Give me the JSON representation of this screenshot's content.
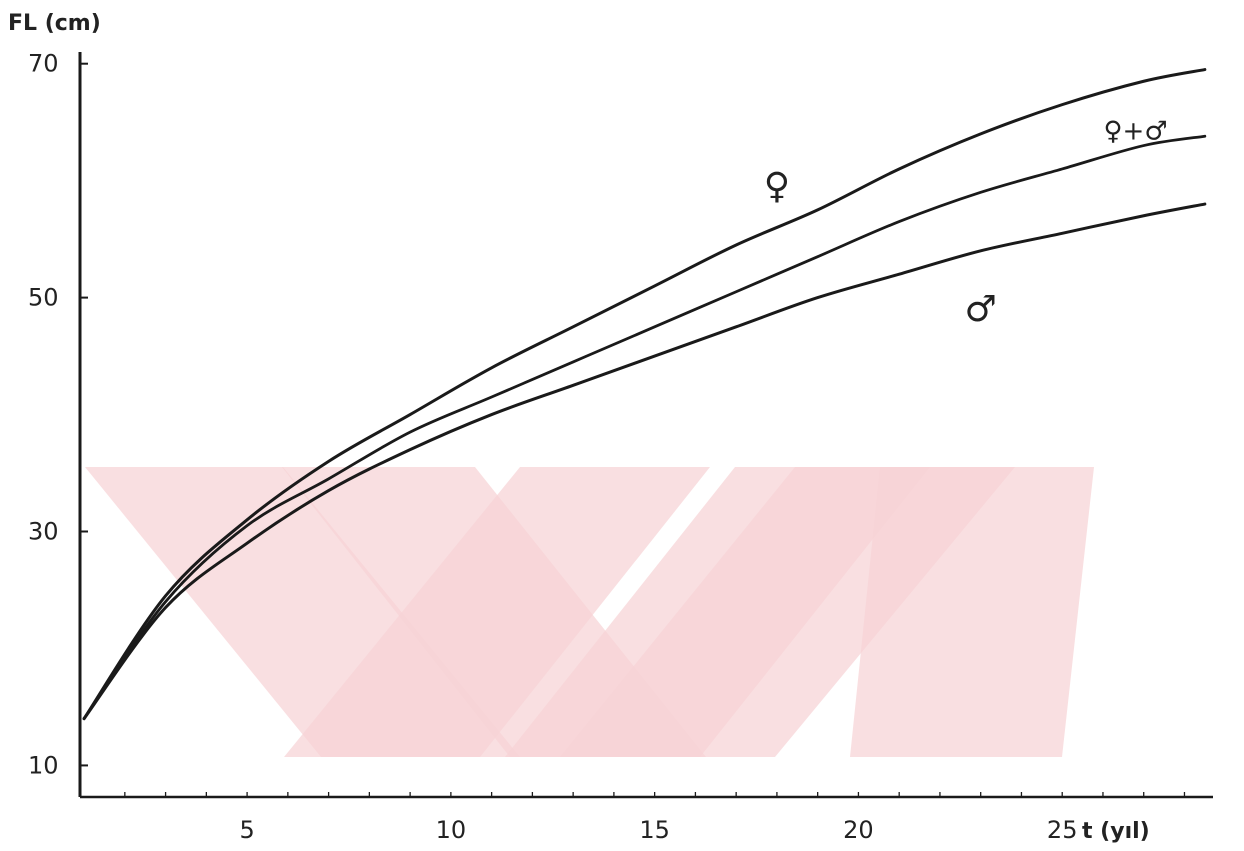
{
  "chart_data": {
    "type": "line",
    "ylabel": "FL (cm)",
    "xlabel": "t (yıl)",
    "xlim": [
      0.9,
      28.7
    ],
    "ylim": [
      7.3,
      71
    ],
    "xticks": [
      5,
      10,
      15,
      20,
      25
    ],
    "yticks": [
      10,
      30,
      50,
      70
    ],
    "x_minor_ticks": [
      2,
      3,
      4,
      5,
      6,
      7,
      8,
      9,
      10,
      11,
      12,
      13,
      14,
      15,
      16,
      17,
      18,
      19,
      20,
      21,
      22,
      23,
      24,
      25,
      26,
      27,
      28
    ],
    "grid": false,
    "colors": {
      "lines": "#1a1a1a",
      "axes": "#1a1a1a",
      "watermark": "#f7d3d6"
    },
    "series": [
      {
        "name": "♀",
        "label_pos": [
          18,
          58.5
        ],
        "points": [
          [
            1,
            14
          ],
          [
            3,
            24.5
          ],
          [
            5,
            31
          ],
          [
            7,
            36
          ],
          [
            9,
            40
          ],
          [
            11,
            44
          ],
          [
            13,
            47.5
          ],
          [
            15,
            51
          ],
          [
            17,
            54.5
          ],
          [
            19,
            57.5
          ],
          [
            21,
            61
          ],
          [
            23,
            64
          ],
          [
            25,
            66.5
          ],
          [
            27,
            68.5
          ],
          [
            28.5,
            69.5
          ]
        ]
      },
      {
        "name": "♀+♂",
        "label_pos": [
          26.8,
          63.5
        ],
        "points": [
          [
            1,
            14
          ],
          [
            3,
            24
          ],
          [
            5,
            30.5
          ],
          [
            7,
            34.5
          ],
          [
            9,
            38.5
          ],
          [
            11,
            41.5
          ],
          [
            13,
            44.5
          ],
          [
            15,
            47.5
          ],
          [
            17,
            50.5
          ],
          [
            19,
            53.5
          ],
          [
            21,
            56.5
          ],
          [
            23,
            59
          ],
          [
            25,
            61
          ],
          [
            27,
            63
          ],
          [
            28.5,
            63.8
          ]
        ]
      },
      {
        "name": "♂",
        "label_pos": [
          23,
          48
        ],
        "points": [
          [
            1,
            14
          ],
          [
            3,
            23.5
          ],
          [
            5,
            29
          ],
          [
            7,
            33.5
          ],
          [
            9,
            37
          ],
          [
            11,
            40
          ],
          [
            13,
            42.5
          ],
          [
            15,
            45
          ],
          [
            17,
            47.5
          ],
          [
            19,
            50
          ],
          [
            21,
            52
          ],
          [
            23,
            54
          ],
          [
            25,
            55.5
          ],
          [
            27,
            57
          ],
          [
            28.5,
            58
          ]
        ]
      }
    ]
  }
}
